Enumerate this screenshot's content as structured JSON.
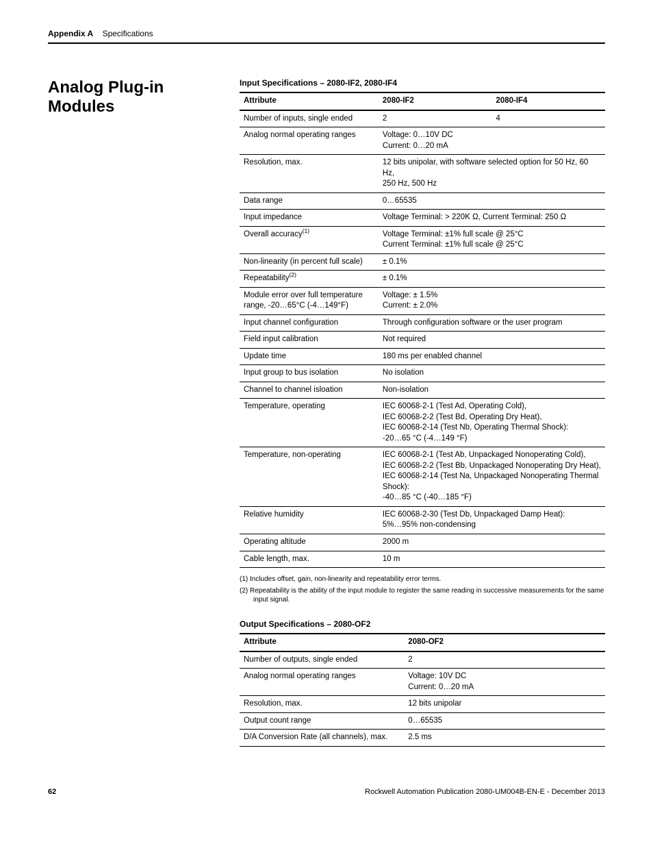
{
  "header": {
    "appendix": "Appendix A",
    "section": "Specifications"
  },
  "heading": "Analog Plug-in Modules",
  "table1": {
    "title": "Input Specifications – 2080-IF2, 2080-IF4",
    "head": {
      "c1": "Attribute",
      "c2": "2080-IF2",
      "c3": "2080-IF4"
    },
    "rows": {
      "r0": {
        "a": "Number of inputs, single ended",
        "b": "2",
        "c": "4"
      },
      "r1": {
        "a": "Analog normal operating ranges",
        "b": "Voltage: 0…10V DC\nCurrent: 0…20 mA"
      },
      "r2": {
        "a": "Resolution, max.",
        "b": "12 bits unipolar, with software selected option for 50 Hz, 60 Hz,\n250 Hz, 500 Hz"
      },
      "r3": {
        "a": "Data range",
        "b": "0…65535"
      },
      "r4": {
        "a": "Input impedance",
        "b": "Voltage Terminal: > 220K Ω, Current Terminal: 250 Ω"
      },
      "r5": {
        "a": "Overall accuracy",
        "b": "Voltage Terminal: ±1% full scale @ 25°C\nCurrent Terminal: ±1% full scale @ 25°C"
      },
      "r6": {
        "a": "Non-linearity (in percent full scale)",
        "b": "± 0.1%"
      },
      "r7": {
        "a": "Repeatability",
        "b": "± 0.1%"
      },
      "r8": {
        "a": "Module error over full temperature range, -20…65°C (-4…149°F)",
        "b": "Voltage: ± 1.5%\nCurrent: ± 2.0%"
      },
      "r9": {
        "a": "Input channel configuration",
        "b": "Through configuration software or the user program"
      },
      "r10": {
        "a": "Field input calibration",
        "b": "Not required"
      },
      "r11": {
        "a": "Update time",
        "b": "180 ms per enabled channel"
      },
      "r12": {
        "a": "Input group to bus isolation",
        "b": "No isolation"
      },
      "r13": {
        "a": "Channel to channel isloation",
        "b": "Non-isolation"
      },
      "r14": {
        "a": "Temperature, operating",
        "b": "IEC 60068-2-1 (Test Ad, Operating Cold),\nIEC 60068-2-2 (Test Bd, Operating Dry Heat),\nIEC 60068-2-14 (Test Nb, Operating Thermal Shock):\n-20…65 °C (-4…149 °F)"
      },
      "r15": {
        "a": "Temperature, non-operating",
        "b": "IEC 60068-2-1 (Test Ab, Unpackaged Nonoperating Cold),\nIEC 60068-2-2 (Test Bb, Unpackaged Nonoperating Dry Heat),\nIEC 60068-2-14 (Test Na, Unpackaged Nonoperating Thermal Shock):\n-40…85 °C (-40…185 °F)"
      },
      "r16": {
        "a": "Relative humidity",
        "b": "IEC 60068-2-30 (Test Db, Unpackaged Damp Heat):\n5%…95% non-condensing"
      },
      "r17": {
        "a": "Operating altitude",
        "b": "2000 m"
      },
      "r18": {
        "a": "Cable length, max.",
        "b": "10 m"
      }
    },
    "footnotes": {
      "f1": "(1)   Includes offset, gain, non-linearity and repeatability error terms.",
      "f2": "(2)   Repeatability is the ability of the input module to register the same reading in successive measurements for the same input signal."
    }
  },
  "table2": {
    "title": "Output Specifications – 2080-OF2",
    "head": {
      "c1": "Attribute",
      "c2": "2080-OF2"
    },
    "rows": {
      "r0": {
        "a": "Number of outputs, single ended",
        "b": "2"
      },
      "r1": {
        "a": "Analog normal operating ranges",
        "b": "Voltage: 10V DC\nCurrent: 0…20 mA"
      },
      "r2": {
        "a": "Resolution, max.",
        "b": "12 bits unipolar"
      },
      "r3": {
        "a": "Output count range",
        "b": "0…65535"
      },
      "r4": {
        "a": "D/A Conversion Rate (all channels), max.",
        "b": "2.5 ms"
      }
    }
  },
  "footer": {
    "page": "62",
    "pub": "Rockwell Automation Publication 2080-UM004B-EN-E - December 2013"
  }
}
